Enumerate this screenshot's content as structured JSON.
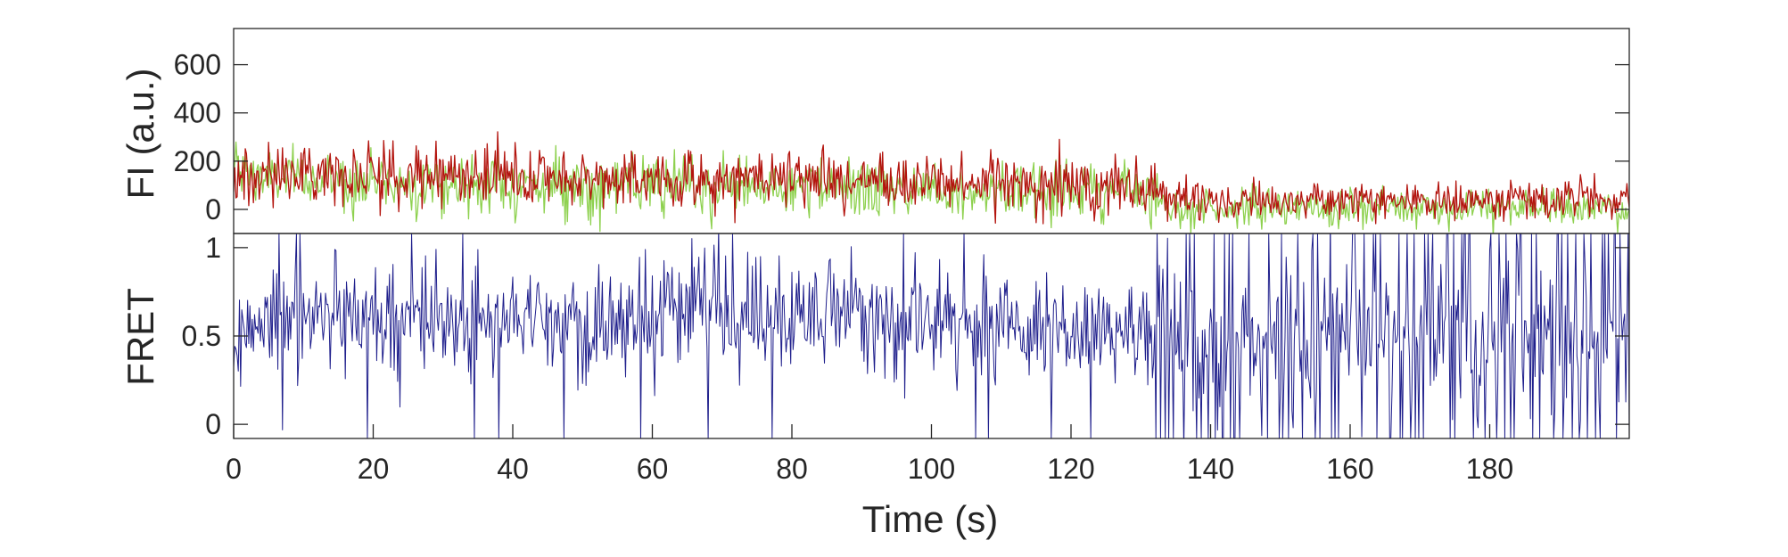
{
  "chart_data": [
    {
      "type": "line",
      "ylabel": "FI (a.u.)",
      "xlim": [
        0,
        200
      ],
      "ylim": [
        -100,
        750
      ],
      "yticks": [
        0,
        200,
        400,
        600
      ],
      "ytick_labels": [
        "0",
        "200",
        "400",
        "600"
      ],
      "series": [
        {
          "color": "#8ed14f",
          "x": [
            0,
            5,
            10,
            15,
            20,
            25,
            30,
            35,
            40,
            45,
            50,
            55,
            60,
            65,
            70,
            75,
            80,
            85,
            90,
            95,
            100,
            105,
            110,
            115,
            120,
            125,
            130,
            135,
            140,
            145,
            150,
            155,
            160,
            165,
            170,
            175,
            180,
            185,
            190,
            195,
            200
          ],
          "values": [
            170,
            130,
            125,
            120,
            115,
            110,
            105,
            105,
            100,
            100,
            100,
            95,
            95,
            95,
            90,
            90,
            90,
            85,
            85,
            85,
            85,
            80,
            80,
            80,
            80,
            80,
            75,
            10,
            5,
            5,
            5,
            5,
            5,
            5,
            5,
            5,
            5,
            5,
            5,
            5,
            5
          ]
        },
        {
          "color": "#b3140e",
          "x": [
            0,
            5,
            10,
            15,
            20,
            25,
            30,
            35,
            40,
            45,
            50,
            55,
            60,
            65,
            70,
            75,
            80,
            85,
            90,
            95,
            100,
            105,
            110,
            115,
            120,
            125,
            130,
            135,
            140,
            145,
            150,
            155,
            160,
            165,
            170,
            175,
            180,
            185,
            190,
            195,
            200
          ],
          "values": [
            130,
            140,
            150,
            155,
            150,
            145,
            140,
            135,
            130,
            130,
            125,
            125,
            125,
            120,
            125,
            130,
            125,
            120,
            120,
            115,
            115,
            110,
            110,
            105,
            100,
            100,
            90,
            40,
            40,
            35,
            35,
            40,
            40,
            40,
            35,
            35,
            40,
            40,
            40,
            40,
            35
          ]
        }
      ]
    },
    {
      "type": "line",
      "xlabel": "Time (s)",
      "ylabel": "FRET",
      "xlim": [
        0,
        200
      ],
      "ylim": [
        -0.08,
        1.08
      ],
      "xticks": [
        0,
        20,
        40,
        60,
        80,
        100,
        120,
        140,
        160,
        180
      ],
      "xtick_labels": [
        "0",
        "20",
        "40",
        "60",
        "80",
        "100",
        "120",
        "140",
        "160",
        "180"
      ],
      "yticks": [
        0,
        0.5,
        1
      ],
      "ytick_labels": [
        "0",
        "0.5",
        "1"
      ],
      "series": [
        {
          "color": "#1f1f8c",
          "x": [
            0,
            5,
            10,
            15,
            20,
            25,
            30,
            35,
            40,
            45,
            50,
            55,
            60,
            65,
            70,
            75,
            80,
            85,
            90,
            95,
            100,
            105,
            110,
            115,
            120,
            125,
            130,
            135,
            140,
            145,
            150,
            155,
            160,
            165,
            170,
            175,
            180,
            185,
            190,
            195,
            200
          ],
          "values": [
            0.5,
            0.6,
            0.6,
            0.62,
            0.6,
            0.58,
            0.6,
            0.6,
            0.58,
            0.55,
            0.55,
            0.6,
            0.6,
            0.62,
            0.62,
            0.6,
            0.6,
            0.62,
            0.6,
            0.6,
            0.6,
            0.58,
            0.55,
            0.55,
            0.55,
            0.5,
            0.5,
            0.45,
            0.45,
            0.45,
            0.45,
            0.5,
            0.5,
            0.5,
            0.5,
            0.5,
            0.5,
            0.5,
            0.5,
            0.5,
            0.5
          ]
        }
      ]
    }
  ]
}
